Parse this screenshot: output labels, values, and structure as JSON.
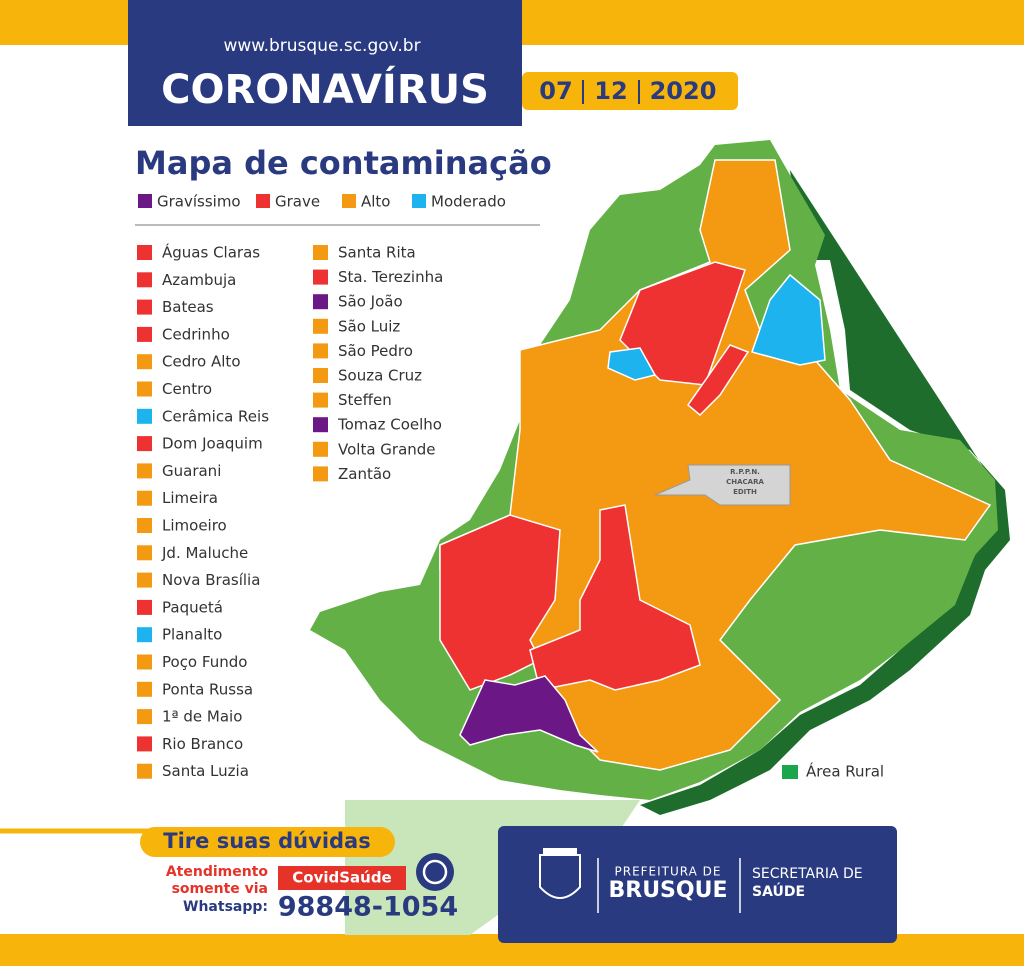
{
  "header": {
    "url": "www.brusque.sc.gov.br",
    "title": "CORONAVÍRUS",
    "date": [
      "07",
      "12",
      "2020"
    ]
  },
  "map": {
    "title": "Mapa de contaminação",
    "levels": [
      {
        "label": "Gravíssimo",
        "color": "#6b1786"
      },
      {
        "label": "Grave",
        "color": "#ee3231"
      },
      {
        "label": "Alto",
        "color": "#f39a12"
      },
      {
        "label": "Moderado",
        "color": "#1cb3ef"
      }
    ],
    "neighborhoods": [
      {
        "name": "Águas Claras",
        "color": "#ee3231"
      },
      {
        "name": "Azambuja",
        "color": "#ee3231"
      },
      {
        "name": "Bateas",
        "color": "#ee3231"
      },
      {
        "name": "Cedrinho",
        "color": "#ee3231"
      },
      {
        "name": "Cedro Alto",
        "color": "#f39a12"
      },
      {
        "name": "Centro",
        "color": "#f39a12"
      },
      {
        "name": "Cerâmica Reis",
        "color": "#1cb3ef"
      },
      {
        "name": "Dom Joaquim",
        "color": "#ee3231"
      },
      {
        "name": "Guarani",
        "color": "#f39a12"
      },
      {
        "name": "Limeira",
        "color": "#f39a12"
      },
      {
        "name": "Limoeiro",
        "color": "#f39a12"
      },
      {
        "name": "Jd. Maluche",
        "color": "#f39a12"
      },
      {
        "name": "Nova Brasília",
        "color": "#f39a12"
      },
      {
        "name": "Paquetá",
        "color": "#ee3231"
      },
      {
        "name": "Planalto",
        "color": "#1cb3ef"
      },
      {
        "name": "Poço Fundo",
        "color": "#f39a12"
      },
      {
        "name": "Ponta Russa",
        "color": "#f39a12"
      },
      {
        "name": "1ª de Maio",
        "color": "#f39a12"
      },
      {
        "name": "Rio Branco",
        "color": "#ee3231"
      },
      {
        "name": "Santa Luzia",
        "color": "#f39a12"
      },
      {
        "name": "Santa Rita",
        "color": "#f39a12"
      },
      {
        "name": "Sta. Terezinha",
        "color": "#ee3231"
      },
      {
        "name": "São João",
        "color": "#6b1786"
      },
      {
        "name": "São Luiz",
        "color": "#f39a12"
      },
      {
        "name": "São Pedro",
        "color": "#f39a12"
      },
      {
        "name": "Souza Cruz",
        "color": "#f39a12"
      },
      {
        "name": "Steffen",
        "color": "#f39a12"
      },
      {
        "name": "Tomaz Coelho",
        "color": "#6b1786"
      },
      {
        "name": "Volta Grande",
        "color": "#f39a12"
      },
      {
        "name": "Zantão",
        "color": "#f39a12"
      }
    ],
    "reserve_label": [
      "R.P.P.N.",
      "CHACARA",
      "EDITH"
    ],
    "rural_label": "Área Rural",
    "rural_color": "#1aa64a"
  },
  "footer": {
    "help_title": "Tire suas dúvidas",
    "service": [
      "Atendimento",
      "somente via",
      "Whatsapp:"
    ],
    "channel": "CovidSaúde",
    "phone": "98848-1054",
    "org1": [
      "PREFEITURA DE",
      "BRUSQUE"
    ],
    "org2": [
      "SECRETARIA DE",
      "SAÚDE"
    ]
  }
}
